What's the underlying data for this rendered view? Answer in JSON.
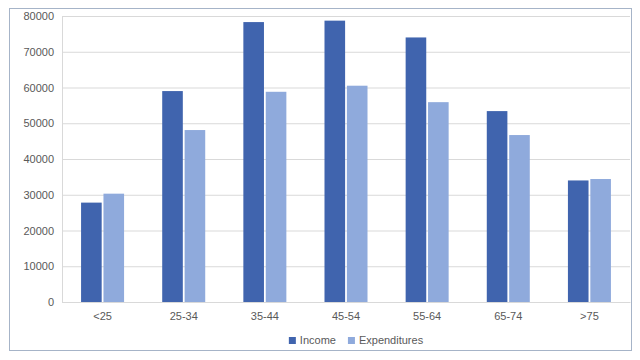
{
  "chart_data": {
    "type": "bar",
    "categories": [
      "<25",
      "25-34",
      "35-44",
      "45-54",
      "55-64",
      "65-74",
      ">75"
    ],
    "series": [
      {
        "name": "Income",
        "color": "#4064ae",
        "values": [
          27800,
          59000,
          78300,
          78700,
          74000,
          53400,
          34000
        ]
      },
      {
        "name": "Expenditures",
        "color": "#8faadc",
        "values": [
          30300,
          48100,
          58800,
          60500,
          55900,
          46700,
          34400
        ]
      }
    ],
    "ylim": [
      0,
      80000
    ],
    "yticks": [
      0,
      10000,
      20000,
      30000,
      40000,
      50000,
      60000,
      70000,
      80000
    ],
    "grid": true,
    "legend": "bottom"
  }
}
